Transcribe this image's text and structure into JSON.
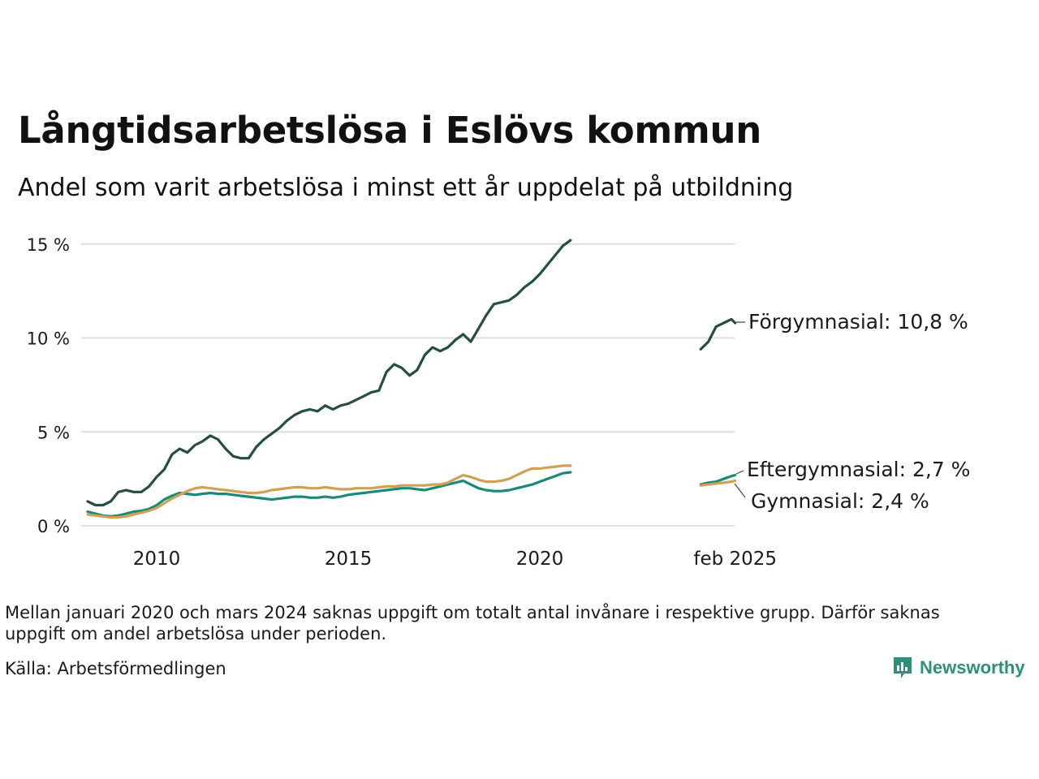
{
  "title": "Långtidsarbetslösa i Eslövs kommun",
  "subtitle": "Andel som varit arbetslösa i minst ett år uppdelat på utbildning",
  "note": "Mellan januari 2020 och mars 2024 saknas uppgift om totalt antal invånare i respektive grupp. Därför saknas uppgift om andel arbetslösa under perioden.",
  "source": "Källa: Arbetsförmedlingen",
  "brand": "Newsworthy",
  "colors": {
    "forgymnasial": "#264d45",
    "eftergymnasial": "#1a8a78",
    "gymnasial": "#d0a055",
    "grid": "#dddddd"
  },
  "chart_data": {
    "type": "line",
    "x_unit": "date (year, fractional)",
    "ylim": [
      0,
      15.5
    ],
    "grid": true,
    "yticks": [
      {
        "value": 0,
        "label": "0 %"
      },
      {
        "value": 5,
        "label": "5 %"
      },
      {
        "value": 10,
        "label": "10 %"
      },
      {
        "value": 15,
        "label": "15 %"
      }
    ],
    "xticks": [
      {
        "value": 2010,
        "label": "2010"
      },
      {
        "value": 2015,
        "label": "2015"
      },
      {
        "value": 2020,
        "label": "2020"
      },
      {
        "value": 2025.1,
        "label": "feb 2025"
      }
    ],
    "series": [
      {
        "name": "Förgymnasial",
        "label": "Förgymnasial: 10,8 %",
        "segments": [
          [
            [
              2008.2,
              1.3
            ],
            [
              2008.4,
              1.1
            ],
            [
              2008.6,
              1.1
            ],
            [
              2008.8,
              1.3
            ],
            [
              2009.0,
              1.8
            ],
            [
              2009.2,
              1.9
            ],
            [
              2009.4,
              1.8
            ],
            [
              2009.6,
              1.8
            ],
            [
              2009.8,
              2.1
            ],
            [
              2010.0,
              2.6
            ],
            [
              2010.2,
              3.0
            ],
            [
              2010.4,
              3.8
            ],
            [
              2010.6,
              4.1
            ],
            [
              2010.8,
              3.9
            ],
            [
              2011.0,
              4.3
            ],
            [
              2011.2,
              4.5
            ],
            [
              2011.4,
              4.8
            ],
            [
              2011.6,
              4.6
            ],
            [
              2011.8,
              4.1
            ],
            [
              2012.0,
              3.7
            ],
            [
              2012.2,
              3.6
            ],
            [
              2012.4,
              3.6
            ],
            [
              2012.6,
              4.2
            ],
            [
              2012.8,
              4.6
            ],
            [
              2013.0,
              4.9
            ],
            [
              2013.2,
              5.2
            ],
            [
              2013.4,
              5.6
            ],
            [
              2013.6,
              5.9
            ],
            [
              2013.8,
              6.1
            ],
            [
              2014.0,
              6.2
            ],
            [
              2014.2,
              6.1
            ],
            [
              2014.4,
              6.4
            ],
            [
              2014.6,
              6.2
            ],
            [
              2014.8,
              6.4
            ],
            [
              2015.0,
              6.5
            ],
            [
              2015.2,
              6.7
            ],
            [
              2015.4,
              6.9
            ],
            [
              2015.6,
              7.1
            ],
            [
              2015.8,
              7.2
            ],
            [
              2016.0,
              8.2
            ],
            [
              2016.2,
              8.6
            ],
            [
              2016.4,
              8.4
            ],
            [
              2016.6,
              8.0
            ],
            [
              2016.8,
              8.3
            ],
            [
              2017.0,
              9.1
            ],
            [
              2017.2,
              9.5
            ],
            [
              2017.4,
              9.3
            ],
            [
              2017.6,
              9.5
            ],
            [
              2017.8,
              9.9
            ],
            [
              2018.0,
              10.2
            ],
            [
              2018.2,
              9.8
            ],
            [
              2018.4,
              10.5
            ],
            [
              2018.6,
              11.2
            ],
            [
              2018.8,
              11.8
            ],
            [
              2019.0,
              11.9
            ],
            [
              2019.2,
              12.0
            ],
            [
              2019.4,
              12.3
            ],
            [
              2019.6,
              12.7
            ],
            [
              2019.8,
              13.0
            ],
            [
              2020.0,
              13.4
            ],
            [
              2020.2,
              13.9
            ],
            [
              2020.4,
              14.4
            ],
            [
              2020.6,
              14.9
            ],
            [
              2020.8,
              15.2
            ]
          ],
          [
            [
              2024.2,
              9.4
            ],
            [
              2024.4,
              9.8
            ],
            [
              2024.6,
              10.6
            ],
            [
              2024.8,
              10.8
            ],
            [
              2025.0,
              11.0
            ],
            [
              2025.1,
              10.8
            ]
          ]
        ]
      },
      {
        "name": "Eftergymnasial",
        "label": "Eftergymnasial:  2,7 %",
        "segments": [
          [
            [
              2008.2,
              0.75
            ],
            [
              2008.4,
              0.65
            ],
            [
              2008.6,
              0.55
            ],
            [
              2008.8,
              0.5
            ],
            [
              2009.0,
              0.55
            ],
            [
              2009.2,
              0.65
            ],
            [
              2009.4,
              0.75
            ],
            [
              2009.6,
              0.8
            ],
            [
              2009.8,
              0.9
            ],
            [
              2010.0,
              1.1
            ],
            [
              2010.2,
              1.4
            ],
            [
              2010.4,
              1.6
            ],
            [
              2010.6,
              1.75
            ],
            [
              2010.8,
              1.7
            ],
            [
              2011.0,
              1.65
            ],
            [
              2011.2,
              1.7
            ],
            [
              2011.4,
              1.75
            ],
            [
              2011.6,
              1.7
            ],
            [
              2011.8,
              1.7
            ],
            [
              2012.0,
              1.65
            ],
            [
              2012.2,
              1.6
            ],
            [
              2012.4,
              1.55
            ],
            [
              2012.6,
              1.5
            ],
            [
              2012.8,
              1.45
            ],
            [
              2013.0,
              1.4
            ],
            [
              2013.2,
              1.45
            ],
            [
              2013.4,
              1.5
            ],
            [
              2013.6,
              1.55
            ],
            [
              2013.8,
              1.55
            ],
            [
              2014.0,
              1.5
            ],
            [
              2014.2,
              1.5
            ],
            [
              2014.4,
              1.55
            ],
            [
              2014.6,
              1.5
            ],
            [
              2014.8,
              1.55
            ],
            [
              2015.0,
              1.65
            ],
            [
              2015.2,
              1.7
            ],
            [
              2015.4,
              1.75
            ],
            [
              2015.6,
              1.8
            ],
            [
              2015.8,
              1.85
            ],
            [
              2016.0,
              1.9
            ],
            [
              2016.2,
              1.95
            ],
            [
              2016.4,
              2.0
            ],
            [
              2016.6,
              2.0
            ],
            [
              2016.8,
              1.95
            ],
            [
              2017.0,
              1.9
            ],
            [
              2017.2,
              2.0
            ],
            [
              2017.4,
              2.1
            ],
            [
              2017.6,
              2.2
            ],
            [
              2017.8,
              2.3
            ],
            [
              2018.0,
              2.4
            ],
            [
              2018.2,
              2.2
            ],
            [
              2018.4,
              2.0
            ],
            [
              2018.6,
              1.9
            ],
            [
              2018.8,
              1.85
            ],
            [
              2019.0,
              1.85
            ],
            [
              2019.2,
              1.9
            ],
            [
              2019.4,
              2.0
            ],
            [
              2019.6,
              2.1
            ],
            [
              2019.8,
              2.2
            ],
            [
              2020.0,
              2.35
            ],
            [
              2020.2,
              2.5
            ],
            [
              2020.4,
              2.65
            ],
            [
              2020.6,
              2.8
            ],
            [
              2020.8,
              2.85
            ]
          ],
          [
            [
              2024.2,
              2.2
            ],
            [
              2024.4,
              2.3
            ],
            [
              2024.6,
              2.35
            ],
            [
              2024.8,
              2.5
            ],
            [
              2025.0,
              2.65
            ],
            [
              2025.1,
              2.7
            ]
          ]
        ]
      },
      {
        "name": "Gymnasial",
        "label": "Gymnasial:  2,4 %",
        "segments": [
          [
            [
              2008.2,
              0.6
            ],
            [
              2008.4,
              0.55
            ],
            [
              2008.6,
              0.5
            ],
            [
              2008.8,
              0.45
            ],
            [
              2009.0,
              0.45
            ],
            [
              2009.2,
              0.5
            ],
            [
              2009.4,
              0.6
            ],
            [
              2009.6,
              0.7
            ],
            [
              2009.8,
              0.8
            ],
            [
              2010.0,
              0.95
            ],
            [
              2010.2,
              1.2
            ],
            [
              2010.4,
              1.45
            ],
            [
              2010.6,
              1.65
            ],
            [
              2010.8,
              1.85
            ],
            [
              2011.0,
              2.0
            ],
            [
              2011.2,
              2.05
            ],
            [
              2011.4,
              2.0
            ],
            [
              2011.6,
              1.95
            ],
            [
              2011.8,
              1.9
            ],
            [
              2012.0,
              1.85
            ],
            [
              2012.2,
              1.8
            ],
            [
              2012.4,
              1.75
            ],
            [
              2012.6,
              1.75
            ],
            [
              2012.8,
              1.8
            ],
            [
              2013.0,
              1.9
            ],
            [
              2013.2,
              1.95
            ],
            [
              2013.4,
              2.0
            ],
            [
              2013.6,
              2.05
            ],
            [
              2013.8,
              2.05
            ],
            [
              2014.0,
              2.0
            ],
            [
              2014.2,
              2.0
            ],
            [
              2014.4,
              2.05
            ],
            [
              2014.6,
              2.0
            ],
            [
              2014.8,
              1.95
            ],
            [
              2015.0,
              1.95
            ],
            [
              2015.2,
              2.0
            ],
            [
              2015.4,
              2.0
            ],
            [
              2015.6,
              2.0
            ],
            [
              2015.8,
              2.05
            ],
            [
              2016.0,
              2.1
            ],
            [
              2016.2,
              2.1
            ],
            [
              2016.4,
              2.15
            ],
            [
              2016.6,
              2.15
            ],
            [
              2016.8,
              2.15
            ],
            [
              2017.0,
              2.15
            ],
            [
              2017.2,
              2.2
            ],
            [
              2017.4,
              2.2
            ],
            [
              2017.6,
              2.3
            ],
            [
              2017.8,
              2.5
            ],
            [
              2018.0,
              2.7
            ],
            [
              2018.2,
              2.6
            ],
            [
              2018.4,
              2.45
            ],
            [
              2018.6,
              2.35
            ],
            [
              2018.8,
              2.35
            ],
            [
              2019.0,
              2.4
            ],
            [
              2019.2,
              2.5
            ],
            [
              2019.4,
              2.7
            ],
            [
              2019.6,
              2.9
            ],
            [
              2019.8,
              3.05
            ],
            [
              2020.0,
              3.05
            ],
            [
              2020.2,
              3.1
            ],
            [
              2020.4,
              3.15
            ],
            [
              2020.6,
              3.2
            ],
            [
              2020.8,
              3.2
            ]
          ],
          [
            [
              2024.2,
              2.15
            ],
            [
              2024.4,
              2.2
            ],
            [
              2024.6,
              2.25
            ],
            [
              2024.8,
              2.3
            ],
            [
              2025.0,
              2.35
            ],
            [
              2025.1,
              2.4
            ]
          ]
        ]
      }
    ]
  }
}
